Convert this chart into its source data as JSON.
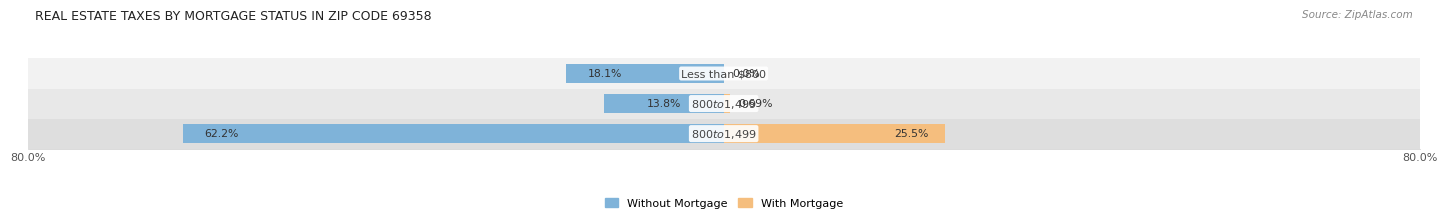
{
  "title": "REAL ESTATE TAXES BY MORTGAGE STATUS IN ZIP CODE 69358",
  "source": "Source: ZipAtlas.com",
  "rows": [
    {
      "label": "Less than $800",
      "blue": 18.1,
      "orange": 0.0,
      "blue_text": "18.1%",
      "orange_text": "0.0%"
    },
    {
      "label": "$800 to $1,499",
      "blue": 13.8,
      "orange": 0.69,
      "blue_text": "13.8%",
      "orange_text": "0.69%"
    },
    {
      "label": "$800 to $1,499",
      "blue": 62.2,
      "orange": 25.5,
      "blue_text": "62.2%",
      "orange_text": "25.5%"
    }
  ],
  "xlim": [
    -80,
    80
  ],
  "xticklabels_left": "80.0%",
  "xticklabels_right": "80.0%",
  "blue_color": "#7FB3D9",
  "orange_color": "#F5BE7E",
  "bar_height": 0.62,
  "row_bg_colors": [
    "#F2F2F2",
    "#E8E8E8",
    "#DEDEDE"
  ],
  "row_outer_bg": "#FFFFFF",
  "title_fontsize": 9.0,
  "label_fontsize": 8.0,
  "pct_fontsize": 7.8,
  "legend_fontsize": 8.0,
  "source_fontsize": 7.5
}
